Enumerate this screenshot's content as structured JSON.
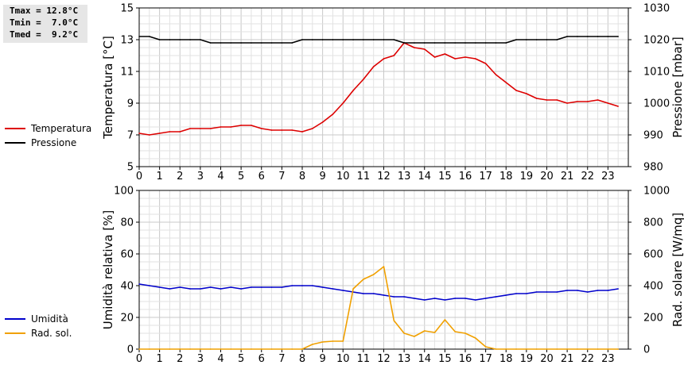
{
  "stats": {
    "tmax": "Tmax = 12.8°C",
    "tmin": "Tmin =  7.0°C",
    "tmed": "Tmed =  9.2°C"
  },
  "legend_top": [
    {
      "label": "Temperatura",
      "color": "#dd0000"
    },
    {
      "label": "Pressione",
      "color": "#000000"
    }
  ],
  "legend_bottom": [
    {
      "label": "Umidità",
      "color": "#0000cc"
    },
    {
      "label": "Rad. sol.",
      "color": "#f0a000"
    }
  ],
  "chart_data": [
    {
      "type": "line",
      "x_ticks": [
        "0",
        "1",
        "2",
        "3",
        "4",
        "5",
        "6",
        "7",
        "8",
        "9",
        "10",
        "11",
        "12",
        "13",
        "14",
        "15",
        "16",
        "17",
        "18",
        "19",
        "20",
        "21",
        "22",
        "23"
      ],
      "xlim": [
        0,
        24
      ],
      "ylabel": "Temperatura [°C]",
      "ylim": [
        5,
        15
      ],
      "y_ticks": [
        "5",
        "7",
        "9",
        "11",
        "13",
        "15"
      ],
      "ylabel_right": "Pressione [mbar]",
      "ylim_right": [
        980,
        1030
      ],
      "y_ticks_right": [
        "980",
        "990",
        "1000",
        "1010",
        "1020",
        "1030"
      ],
      "grid": true,
      "series": [
        {
          "name": "Temperatura",
          "color": "#dd0000",
          "axis": "left",
          "x": [
            0,
            0.5,
            1,
            1.5,
            2,
            2.5,
            3,
            3.5,
            4,
            4.5,
            5,
            5.5,
            6,
            6.5,
            7,
            7.5,
            8,
            8.5,
            9,
            9.5,
            10,
            10.5,
            11,
            11.5,
            12,
            12.5,
            13,
            13.5,
            14,
            14.5,
            15,
            15.5,
            16,
            16.5,
            17,
            17.5,
            18,
            18.5,
            19,
            19.5,
            20,
            20.5,
            21,
            21.5,
            22,
            22.5,
            23,
            23.5
          ],
          "y": [
            7.1,
            7.0,
            7.1,
            7.2,
            7.2,
            7.4,
            7.4,
            7.4,
            7.5,
            7.5,
            7.6,
            7.6,
            7.4,
            7.3,
            7.3,
            7.3,
            7.2,
            7.4,
            7.8,
            8.3,
            9.0,
            9.8,
            10.5,
            11.3,
            11.8,
            12.0,
            12.8,
            12.5,
            12.4,
            11.9,
            12.1,
            11.8,
            11.9,
            11.8,
            11.5,
            10.8,
            10.3,
            9.8,
            9.6,
            9.3,
            9.2,
            9.2,
            9.0,
            9.1,
            9.1,
            9.2,
            9.0,
            8.8
          ]
        },
        {
          "name": "Pressione",
          "color": "#000000",
          "axis": "right",
          "x": [
            0,
            0.5,
            1,
            1.5,
            2,
            2.5,
            3,
            3.5,
            4,
            4.5,
            5,
            5.5,
            6,
            6.5,
            7,
            7.5,
            8,
            8.5,
            9,
            9.5,
            10,
            10.5,
            11,
            11.5,
            12,
            12.5,
            13,
            13.5,
            14,
            14.5,
            15,
            15.5,
            16,
            16.5,
            17,
            17.5,
            18,
            18.5,
            19,
            19.5,
            20,
            20.5,
            21,
            21.5,
            22,
            22.5,
            23,
            23.5
          ],
          "y": [
            1021,
            1021,
            1020,
            1020,
            1020,
            1020,
            1020,
            1019,
            1019,
            1019,
            1019,
            1019,
            1019,
            1019,
            1019,
            1019,
            1020,
            1020,
            1020,
            1020,
            1020,
            1020,
            1020,
            1020,
            1020,
            1020,
            1019,
            1019,
            1019,
            1019,
            1019,
            1019,
            1019,
            1019,
            1019,
            1019,
            1019,
            1020,
            1020,
            1020,
            1020,
            1020,
            1021,
            1021,
            1021,
            1021,
            1021,
            1021
          ]
        }
      ]
    },
    {
      "type": "line",
      "x_ticks": [
        "0",
        "1",
        "2",
        "3",
        "4",
        "5",
        "6",
        "7",
        "8",
        "9",
        "10",
        "11",
        "12",
        "13",
        "14",
        "15",
        "16",
        "17",
        "18",
        "19",
        "20",
        "21",
        "22",
        "23"
      ],
      "xlim": [
        0,
        24
      ],
      "ylabel": "Umidità relativa [%]",
      "ylim": [
        0,
        100
      ],
      "y_ticks": [
        "0",
        "20",
        "40",
        "60",
        "80",
        "100"
      ],
      "ylabel_right": "Rad. solare [W/mq]",
      "ylim_right": [
        0,
        1000
      ],
      "y_ticks_right": [
        "0",
        "200",
        "400",
        "600",
        "800",
        "1000"
      ],
      "grid": true,
      "series": [
        {
          "name": "Umidità",
          "color": "#0000cc",
          "axis": "left",
          "x": [
            0,
            0.5,
            1,
            1.5,
            2,
            2.5,
            3,
            3.5,
            4,
            4.5,
            5,
            5.5,
            6,
            6.5,
            7,
            7.5,
            8,
            8.5,
            9,
            9.5,
            10,
            10.5,
            11,
            11.5,
            12,
            12.5,
            13,
            13.5,
            14,
            14.5,
            15,
            15.5,
            16,
            16.5,
            17,
            17.5,
            18,
            18.5,
            19,
            19.5,
            20,
            20.5,
            21,
            21.5,
            22,
            22.5,
            23,
            23.5
          ],
          "y": [
            41,
            40,
            39,
            38,
            39,
            38,
            38,
            39,
            38,
            39,
            38,
            39,
            39,
            39,
            39,
            40,
            40,
            40,
            39,
            38,
            37,
            36,
            35,
            35,
            34,
            33,
            33,
            32,
            31,
            32,
            31,
            32,
            32,
            31,
            32,
            33,
            34,
            35,
            35,
            36,
            36,
            36,
            37,
            37,
            36,
            37,
            37,
            38
          ]
        },
        {
          "name": "Rad. sol.",
          "color": "#f0a000",
          "axis": "right",
          "x": [
            0,
            0.5,
            1,
            1.5,
            2,
            2.5,
            3,
            3.5,
            4,
            4.5,
            5,
            5.5,
            6,
            6.5,
            7,
            7.5,
            8,
            8.5,
            9,
            9.5,
            10,
            10.5,
            11,
            11.5,
            12,
            12.5,
            13,
            13.5,
            14,
            14.5,
            15,
            15.5,
            16,
            16.5,
            17,
            17.5,
            18,
            18.5,
            19,
            19.5,
            20,
            20.5,
            21,
            21.5,
            22,
            22.5,
            23,
            23.5
          ],
          "y": [
            0,
            0,
            0,
            0,
            0,
            0,
            0,
            0,
            0,
            0,
            0,
            0,
            0,
            0,
            0,
            0,
            0,
            30,
            45,
            50,
            50,
            380,
            440,
            470,
            520,
            180,
            100,
            80,
            115,
            105,
            185,
            110,
            100,
            70,
            15,
            0,
            0,
            0,
            0,
            0,
            0,
            0,
            0,
            0,
            0,
            0,
            0,
            0
          ]
        }
      ]
    }
  ]
}
